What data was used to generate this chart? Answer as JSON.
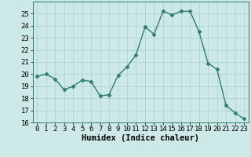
{
  "x": [
    0,
    1,
    2,
    3,
    4,
    5,
    6,
    7,
    8,
    9,
    10,
    11,
    12,
    13,
    14,
    15,
    16,
    17,
    18,
    19,
    20,
    21,
    22,
    23
  ],
  "y": [
    19.8,
    20.0,
    19.6,
    18.7,
    19.0,
    19.5,
    19.4,
    18.2,
    18.3,
    19.9,
    20.6,
    21.6,
    23.9,
    23.3,
    25.2,
    24.9,
    25.2,
    25.2,
    23.5,
    20.9,
    20.4,
    17.4,
    16.8,
    16.3
  ],
  "line_color": "#2e7d6e",
  "marker_color": "#2e7d6e",
  "bg_color": "#cce9e7",
  "grid_color": "#aacfcc",
  "xlabel": "Humidex (Indice chaleur)",
  "ylim": [
    16,
    26
  ],
  "yticks": [
    16,
    17,
    18,
    19,
    20,
    21,
    22,
    23,
    24,
    25
  ],
  "xlim": [
    -0.5,
    23.5
  ],
  "xticks": [
    0,
    1,
    2,
    3,
    4,
    5,
    6,
    7,
    8,
    9,
    10,
    11,
    12,
    13,
    14,
    15,
    16,
    17,
    18,
    19,
    20,
    21,
    22,
    23
  ],
  "xlabel_fontsize": 7.5,
  "tick_fontsize": 6.5,
  "line_width": 1.0,
  "marker_size": 2.5
}
